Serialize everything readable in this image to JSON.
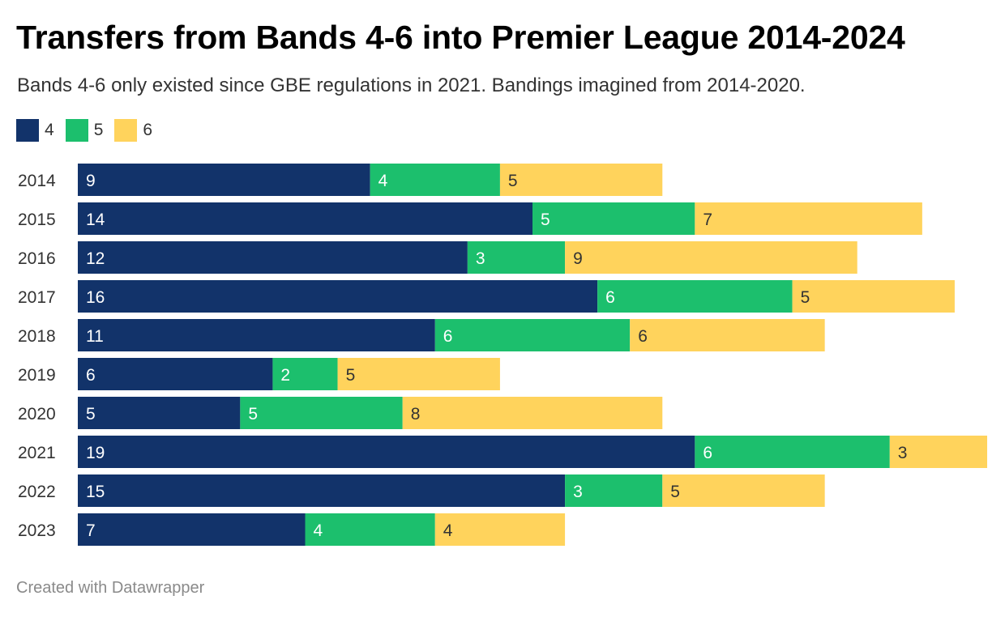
{
  "header": {
    "title": "Transfers from Bands 4-6 into Premier League 2014-2024",
    "subtitle": "Bands 4-6 only existed since GBE regulations in 2021. Bandings imagined from 2014-2020."
  },
  "legend": {
    "items": [
      {
        "label": "4",
        "color": "#12336a"
      },
      {
        "label": "5",
        "color": "#1cbf6d"
      },
      {
        "label": "6",
        "color": "#ffd35c"
      }
    ]
  },
  "chart_data": {
    "type": "bar",
    "orientation": "horizontal",
    "stacked": true,
    "title": "Transfers from Bands 4-6 into Premier League 2014-2024",
    "subtitle": "Bands 4-6 only existed since GBE regulations in 2021. Bandings imagined from 2014-2020.",
    "xlabel": "",
    "ylabel": "",
    "xlim": [
      0,
      28
    ],
    "grid": false,
    "legend_position": "top-left",
    "categories": [
      "2014",
      "2015",
      "2016",
      "2017",
      "2018",
      "2019",
      "2020",
      "2021",
      "2022",
      "2023"
    ],
    "series": [
      {
        "name": "4",
        "color": "#12336a",
        "label_color": "#ffffff",
        "values": [
          9,
          14,
          12,
          16,
          11,
          6,
          5,
          19,
          15,
          7
        ]
      },
      {
        "name": "5",
        "color": "#1cbf6d",
        "label_color": "#ffffff",
        "values": [
          4,
          5,
          3,
          6,
          6,
          2,
          5,
          6,
          3,
          4
        ]
      },
      {
        "name": "6",
        "color": "#ffd35c",
        "label_color": "#333333",
        "values": [
          5,
          7,
          9,
          5,
          6,
          5,
          8,
          3,
          5,
          4
        ]
      }
    ]
  },
  "footer": {
    "credit": "Created with Datawrapper"
  }
}
